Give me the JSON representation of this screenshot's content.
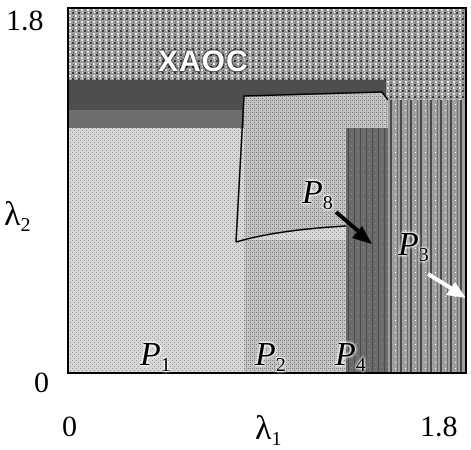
{
  "axes": {
    "x_label": "λ",
    "x_sub": "1",
    "y_label": "λ",
    "y_sub": "2",
    "x_ticks": [
      "0",
      "1.8"
    ],
    "y_ticks": [
      "1.8",
      "0"
    ]
  },
  "regions": {
    "chaos_label": "XAOC",
    "p1": {
      "letter": "P",
      "sub": "1"
    },
    "p2": {
      "letter": "P",
      "sub": "2"
    },
    "p3": {
      "letter": "P",
      "sub": "3"
    },
    "p4": {
      "letter": "P",
      "sub": "4"
    },
    "p8": {
      "letter": "P",
      "sub": "8"
    }
  },
  "colors": {
    "p1": "#c8c8c8",
    "p2": "#d2d2d2",
    "p4": "#6a6a6a",
    "band": "#505050",
    "background": "#a8a8a8"
  }
}
